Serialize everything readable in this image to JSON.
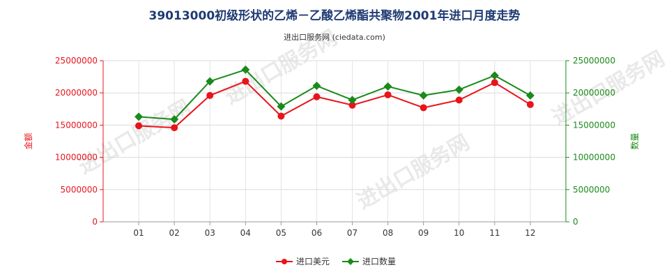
{
  "chart_data": {
    "type": "line",
    "title": "39013000初级形状的乙烯－乙酸乙烯酯共聚物2001年进口月度走势",
    "subtitle": "进出口服务网 (ciedata.com)",
    "categories": [
      "01",
      "02",
      "03",
      "04",
      "05",
      "06",
      "07",
      "08",
      "09",
      "10",
      "11",
      "12"
    ],
    "series": [
      {
        "name": "进口美元",
        "axis": "left",
        "color": "#e8141b",
        "values": [
          14900000,
          14600000,
          19600000,
          21800000,
          16400000,
          19400000,
          18100000,
          19700000,
          17700000,
          18900000,
          21600000,
          18200000
        ]
      },
      {
        "name": "进口数量",
        "axis": "right",
        "color": "#1a8a1a",
        "values": [
          16300000,
          15900000,
          21800000,
          23600000,
          17900000,
          21100000,
          18900000,
          21000000,
          19600000,
          20500000,
          22700000,
          19600000
        ]
      }
    ],
    "y_left": {
      "label": "金额",
      "ylim": [
        0,
        25000000
      ],
      "ticks": [
        0,
        5000000,
        10000000,
        15000000,
        20000000,
        25000000
      ],
      "tick_labels": [
        "0",
        "5000000",
        "10000000",
        "15000000",
        "20000000",
        "25000000"
      ],
      "color": "#e8141b"
    },
    "y_right": {
      "label": "数量",
      "ylim": [
        0,
        25000000
      ],
      "ticks": [
        0,
        5000000,
        10000000,
        15000000,
        20000000,
        25000000
      ],
      "tick_labels": [
        "0",
        "5000000",
        "10000000",
        "15000000",
        "20000000",
        "25000000"
      ],
      "color": "#1a8a1a"
    },
    "grid": true,
    "legend_position": "bottom-center"
  },
  "watermark_text": "进出口服务网"
}
